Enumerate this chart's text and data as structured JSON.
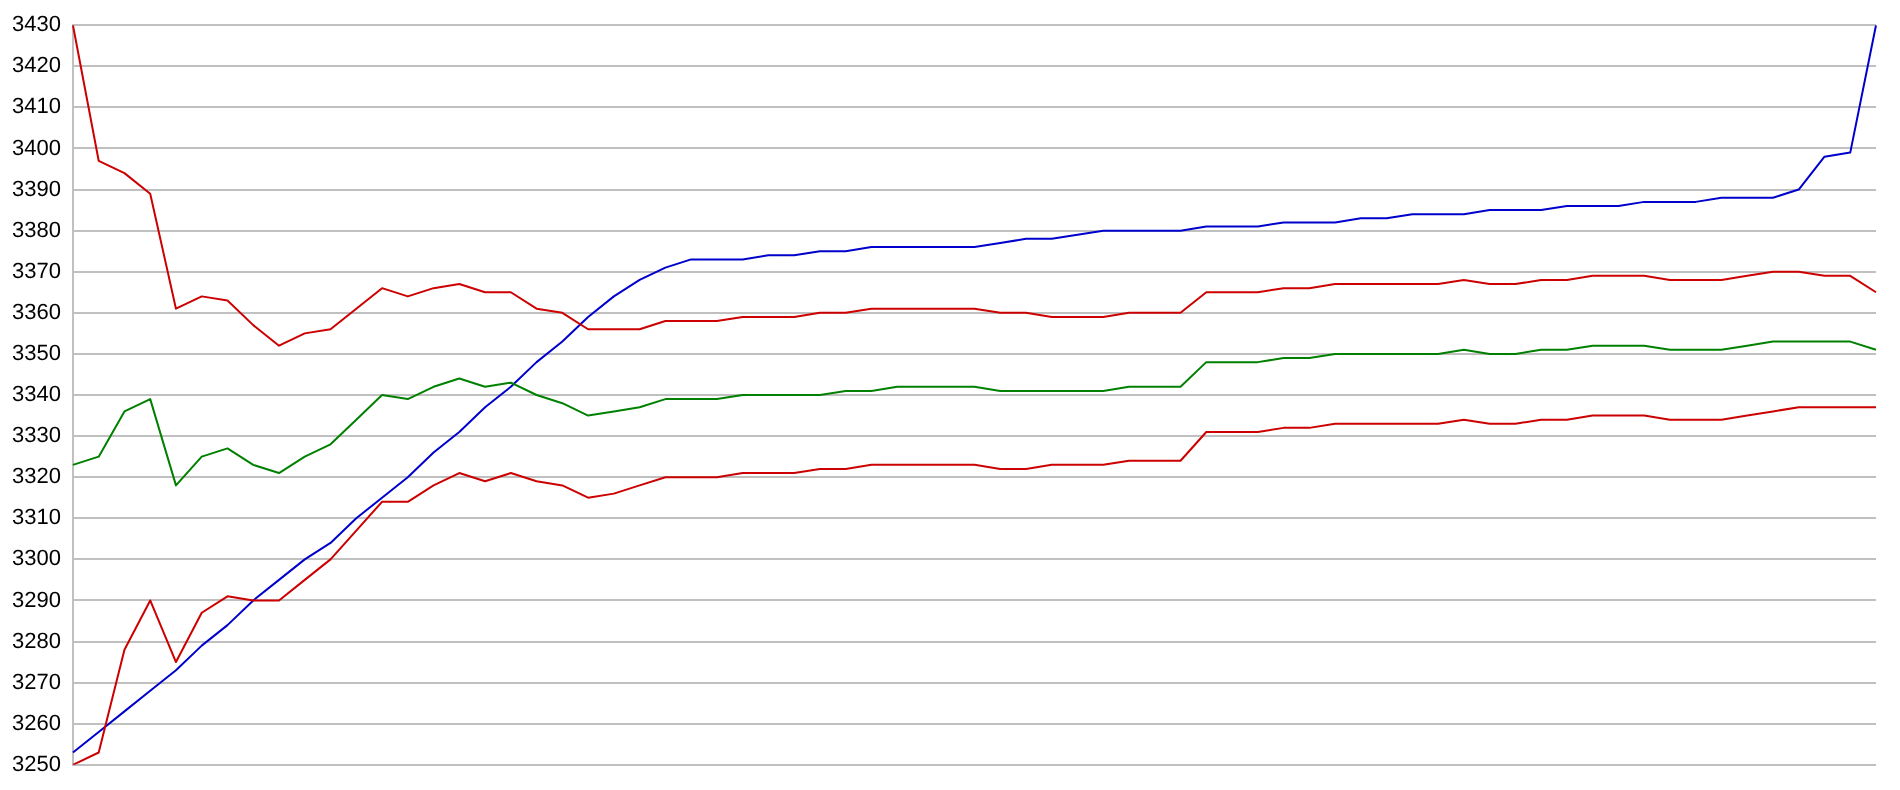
{
  "chart_data": {
    "type": "line",
    "categories": [
      null,
      null,
      null,
      null,
      null,
      null,
      null,
      null,
      null,
      null,
      null,
      null,
      null,
      null,
      null,
      null,
      null,
      null,
      null,
      null,
      null,
      null,
      null,
      null,
      null,
      null,
      null,
      null,
      null,
      null,
      null,
      null,
      null,
      null,
      null,
      null,
      null,
      null,
      null,
      null,
      null,
      null,
      null,
      null,
      null,
      null,
      null,
      null,
      null,
      null,
      null,
      null,
      null,
      null,
      null,
      null,
      null,
      null,
      null,
      null,
      null,
      null,
      null,
      null,
      null,
      null,
      null,
      null,
      null,
      null,
      null
    ],
    "series": [
      {
        "color": "#cc0000",
        "values": [
          3430,
          3397,
          3394,
          3389,
          3361,
          3364,
          3363,
          3357,
          3352,
          3355,
          3356,
          3361,
          3366,
          3364,
          3366,
          3367,
          3365,
          3365,
          3361,
          3360,
          3356,
          3356,
          3356,
          3358,
          3358,
          3358,
          3359,
          3359,
          3359,
          3360,
          3360,
          3361,
          3361,
          3361,
          3361,
          3361,
          3360,
          3360,
          3359,
          3359,
          3359,
          3360,
          3360,
          3360,
          3365,
          3365,
          3365,
          3366,
          3366,
          3367,
          3367,
          3367,
          3367,
          3367,
          3368,
          3367,
          3367,
          3368,
          3368,
          3369,
          3369,
          3369,
          3368,
          3368,
          3368,
          3369,
          3370,
          3370,
          3369,
          3369,
          3365
        ]
      },
      {
        "color": "#008000",
        "values": [
          3323,
          3325,
          3336,
          3339,
          3318,
          3325,
          3327,
          3323,
          3321,
          3325,
          3328,
          3334,
          3340,
          3339,
          3342,
          3344,
          3342,
          3343,
          3340,
          3338,
          3335,
          3336,
          3337,
          3339,
          3339,
          3339,
          3340,
          3340,
          3340,
          3340,
          3341,
          3341,
          3342,
          3342,
          3342,
          3342,
          3341,
          3341,
          3341,
          3341,
          3341,
          3342,
          3342,
          3342,
          3348,
          3348,
          3348,
          3349,
          3349,
          3350,
          3350,
          3350,
          3350,
          3350,
          3351,
          3350,
          3350,
          3351,
          3351,
          3352,
          3352,
          3352,
          3351,
          3351,
          3351,
          3352,
          3353,
          3353,
          3353,
          3353,
          3351
        ]
      },
      {
        "color": "#cc0000",
        "values": [
          3250,
          3253,
          3278,
          3290,
          3275,
          3287,
          3291,
          3290,
          3290,
          3295,
          3300,
          3307,
          3314,
          3314,
          3318,
          3321,
          3319,
          3321,
          3319,
          3318,
          3315,
          3316,
          3318,
          3320,
          3320,
          3320,
          3321,
          3321,
          3321,
          3322,
          3322,
          3323,
          3323,
          3323,
          3323,
          3323,
          3322,
          3322,
          3323,
          3323,
          3323,
          3324,
          3324,
          3324,
          3331,
          3331,
          3331,
          3332,
          3332,
          3333,
          3333,
          3333,
          3333,
          3333,
          3334,
          3333,
          3333,
          3334,
          3334,
          3335,
          3335,
          3335,
          3334,
          3334,
          3334,
          3335,
          3336,
          3337,
          3337,
          3337,
          3337
        ]
      },
      {
        "color": "#0000cc",
        "values": [
          3253,
          3258,
          3263,
          3268,
          3273,
          3279,
          3284,
          3290,
          3295,
          3300,
          3304,
          3310,
          3315,
          3320,
          3326,
          3331,
          3337,
          3342,
          3348,
          3353,
          3359,
          3364,
          3368,
          3371,
          3373,
          3373,
          3373,
          3374,
          3374,
          3375,
          3375,
          3376,
          3376,
          3376,
          3376,
          3376,
          3377,
          3378,
          3378,
          3379,
          3380,
          3380,
          3380,
          3380,
          3381,
          3381,
          3381,
          3382,
          3382,
          3382,
          3383,
          3383,
          3384,
          3384,
          3384,
          3385,
          3385,
          3385,
          3386,
          3386,
          3386,
          3387,
          3387,
          3387,
          3388,
          3388,
          3388,
          3390,
          3398,
          3399,
          3430
        ]
      }
    ],
    "ylim": [
      3250,
      3430
    ],
    "yticks": [
      3250,
      3260,
      3270,
      3280,
      3290,
      3300,
      3310,
      3320,
      3330,
      3340,
      3350,
      3360,
      3370,
      3380,
      3390,
      3400,
      3410,
      3420,
      3430
    ],
    "grid": "y",
    "legend": false,
    "marker": "none",
    "line_style": "solid"
  }
}
